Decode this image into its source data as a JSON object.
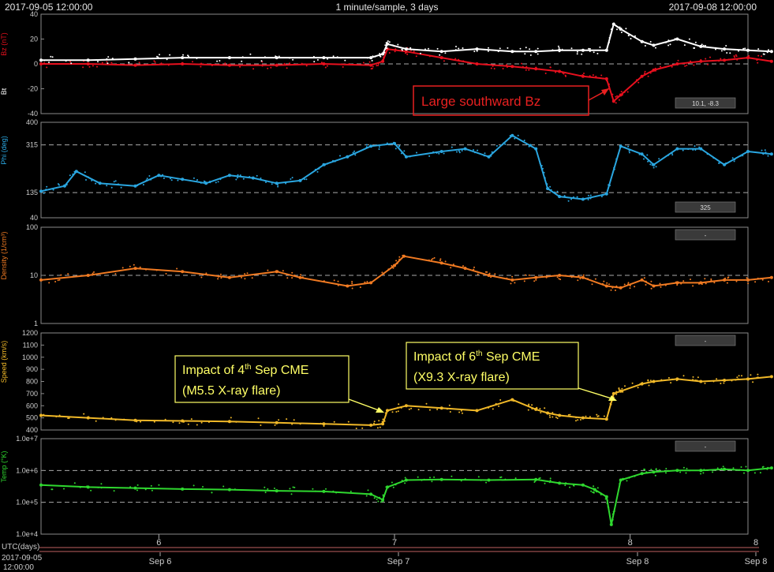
{
  "header": {
    "start": "2017-09-05 12:00:00",
    "center": "1 minute/sample, 3 days",
    "end": "2017-09-08 12:00:00"
  },
  "footer": {
    "utc_label": "UTC(days)",
    "date_line1": "2017-09-05",
    "date_line2": "12:00:00"
  },
  "colors": {
    "bz": "#e8101e",
    "bt": "#ffffff",
    "phi": "#2aa6e0",
    "density": "#f07a22",
    "speed": "#f0b828",
    "temp": "#2fd82f",
    "annotation": "#ffff66",
    "callout_red": "#e82020"
  },
  "chart_data": [
    {
      "type": "scatter",
      "ylabels": [
        "Bz (nT)",
        "Bt"
      ],
      "ylim": [
        -40,
        40
      ],
      "ticks": [
        "40",
        "20",
        "0",
        "-20",
        "-40"
      ],
      "readout": "10.1, -8.3",
      "series": [
        {
          "name": "Bz",
          "x": [
            5.5,
            5.7,
            5.9,
            6.1,
            6.3,
            6.5,
            6.7,
            6.9,
            6.95,
            6.97,
            7.05,
            7.2,
            7.35,
            7.5,
            7.6,
            7.7,
            7.8,
            7.9,
            7.93,
            7.96,
            8.05,
            8.1,
            8.2,
            8.3,
            8.4,
            8.5,
            8.6
          ],
          "y": [
            0,
            0,
            -1,
            0,
            -1,
            -1,
            0,
            -1,
            2,
            12,
            10,
            5,
            0,
            -2,
            -4,
            -6,
            -10,
            -12,
            -30,
            -25,
            -10,
            -5,
            0,
            2,
            3,
            5,
            2
          ]
        },
        {
          "name": "Bt",
          "x": [
            5.5,
            5.7,
            5.9,
            6.1,
            6.3,
            6.5,
            6.7,
            6.9,
            6.95,
            6.97,
            7.05,
            7.2,
            7.35,
            7.5,
            7.6,
            7.7,
            7.8,
            7.9,
            7.93,
            7.96,
            8.05,
            8.1,
            8.2,
            8.3,
            8.4,
            8.5,
            8.6
          ],
          "y": [
            3,
            3,
            4,
            5,
            5,
            5,
            5,
            5,
            8,
            16,
            12,
            10,
            12,
            10,
            10,
            11,
            11,
            11,
            32,
            28,
            18,
            15,
            20,
            14,
            12,
            11,
            10
          ]
        }
      ]
    },
    {
      "type": "scatter",
      "ylabels": [
        "Phi (deg)"
      ],
      "ylim": [
        40,
        400
      ],
      "ticks": [
        "400",
        "315",
        "135",
        "40"
      ],
      "readout": "325",
      "series": [
        {
          "name": "Phi",
          "x": [
            5.5,
            5.6,
            5.65,
            5.75,
            5.9,
            6.0,
            6.1,
            6.2,
            6.3,
            6.4,
            6.5,
            6.6,
            6.7,
            6.8,
            6.9,
            7.0,
            7.05,
            7.2,
            7.3,
            7.4,
            7.5,
            7.6,
            7.65,
            7.7,
            7.8,
            7.9,
            7.96,
            8.05,
            8.1,
            8.2,
            8.3,
            8.4,
            8.5,
            8.6
          ],
          "y": [
            140,
            160,
            215,
            170,
            160,
            200,
            185,
            170,
            200,
            190,
            170,
            180,
            240,
            270,
            310,
            320,
            270,
            290,
            300,
            270,
            350,
            300,
            150,
            120,
            110,
            130,
            310,
            280,
            240,
            300,
            300,
            240,
            290,
            280
          ]
        }
      ]
    },
    {
      "type": "scatter",
      "ylabels": [
        "Density (1/cm³)"
      ],
      "ylim": [
        1,
        100
      ],
      "scale": "log",
      "ticks": [
        "100",
        "10",
        "1"
      ],
      "readout": "-",
      "series": [
        {
          "name": "Density",
          "x": [
            5.5,
            5.7,
            5.9,
            6.1,
            6.3,
            6.5,
            6.6,
            6.8,
            6.9,
            7.0,
            7.04,
            7.2,
            7.3,
            7.4,
            7.5,
            7.6,
            7.7,
            7.8,
            7.9,
            7.96,
            8.05,
            8.1,
            8.2,
            8.3,
            8.4,
            8.5,
            8.6
          ],
          "y": [
            8,
            10,
            14,
            12,
            9,
            12,
            9,
            6,
            7,
            16,
            25,
            18,
            14,
            10,
            8,
            9,
            10,
            9,
            6,
            5.5,
            8,
            6,
            7,
            7,
            8,
            8,
            9
          ]
        }
      ]
    },
    {
      "type": "scatter",
      "ylabels": [
        "Speed (km/s)"
      ],
      "ylim": [
        400,
        1200
      ],
      "ticks": [
        "1200",
        "1100",
        "1000",
        "900",
        "800",
        "700",
        "600",
        "500",
        "400"
      ],
      "readout": "-",
      "series": [
        {
          "name": "Speed",
          "x": [
            5.5,
            5.7,
            5.9,
            6.1,
            6.3,
            6.5,
            6.7,
            6.9,
            6.95,
            6.97,
            7.05,
            7.2,
            7.35,
            7.5,
            7.6,
            7.65,
            7.7,
            7.8,
            7.9,
            7.93,
            7.96,
            8.05,
            8.1,
            8.2,
            8.3,
            8.4,
            8.5,
            8.6
          ],
          "y": [
            520,
            500,
            480,
            475,
            470,
            460,
            450,
            440,
            450,
            560,
            600,
            580,
            560,
            650,
            570,
            540,
            520,
            500,
            490,
            700,
            720,
            780,
            800,
            820,
            800,
            810,
            820,
            840
          ]
        }
      ]
    },
    {
      "type": "scatter",
      "ylabels": [
        "Temp (°K)"
      ],
      "ylim": [
        10000,
        10000000
      ],
      "scale": "log",
      "ticks": [
        "1.0e+7",
        "1.0e+6",
        "1.0e+5",
        "1.0e+4"
      ],
      "readout": "-",
      "series": [
        {
          "name": "Temp",
          "x": [
            5.5,
            5.7,
            5.9,
            6.1,
            6.3,
            6.5,
            6.7,
            6.9,
            6.95,
            6.97,
            7.05,
            7.2,
            7.4,
            7.6,
            7.7,
            7.8,
            7.85,
            7.9,
            7.92,
            7.96,
            8.05,
            8.1,
            8.2,
            8.3,
            8.4,
            8.5,
            8.6
          ],
          "y": [
            350000,
            300000,
            280000,
            260000,
            250000,
            230000,
            220000,
            180000,
            120000,
            300000,
            500000,
            520000,
            500000,
            520000,
            400000,
            350000,
            250000,
            150000,
            20000,
            500000,
            800000,
            900000,
            1000000,
            1000000,
            1100000,
            1000000,
            1200000
          ]
        }
      ]
    }
  ],
  "xaxis": {
    "ticks": [
      "6",
      "7",
      "8"
    ],
    "right_label": "8",
    "bottom_labels": [
      "Sep 6",
      "Sep 7",
      "Sep 8",
      "Sep 8"
    ]
  },
  "annotations": {
    "bz": "Large southward Bz",
    "cme4_line1_a": "Impact of 4",
    "cme4_line1_sup": "th",
    "cme4_line1_b": " Sep CME",
    "cme4_line2": "(M5.5 X-ray flare)",
    "cme6_line1_a": "Impact of 6",
    "cme6_line1_sup": "th",
    "cme6_line1_b": " Sep CME",
    "cme6_line2": "(X9.3 X-ray flare)"
  }
}
